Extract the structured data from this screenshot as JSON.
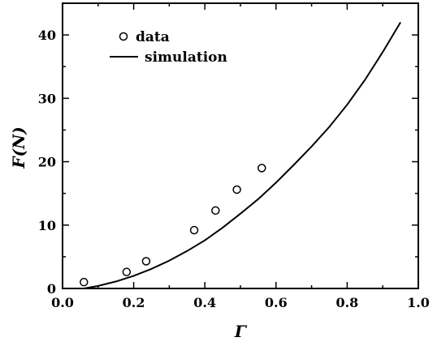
{
  "chart_data": {
    "type": "scatter",
    "xlabel": "Γ",
    "ylabel": "F(N)",
    "xlim": [
      0.0,
      1.0
    ],
    "ylim": [
      0,
      45
    ],
    "x_ticks": [
      "0.0",
      "0.2",
      "0.4",
      "0.6",
      "0.8",
      "1.0"
    ],
    "y_ticks": [
      "0",
      "10",
      "20",
      "30",
      "40"
    ],
    "grid": false,
    "legend_position": "top-left",
    "series": [
      {
        "name": "data",
        "kind": "scatter",
        "marker": "open-circle",
        "x": [
          0.06,
          0.18,
          0.235,
          0.37,
          0.43,
          0.49,
          0.56
        ],
        "y": [
          1.0,
          2.6,
          4.3,
          9.2,
          12.3,
          15.6,
          19.0
        ]
      },
      {
        "name": "simulation",
        "kind": "line",
        "x": [
          0.06,
          0.1,
          0.15,
          0.2,
          0.25,
          0.3,
          0.35,
          0.4,
          0.45,
          0.5,
          0.55,
          0.6,
          0.65,
          0.7,
          0.75,
          0.8,
          0.85,
          0.9,
          0.95
        ],
        "y": [
          0.0,
          0.4,
          1.1,
          2.0,
          3.1,
          4.4,
          5.9,
          7.6,
          9.6,
          11.8,
          14.1,
          16.7,
          19.5,
          22.4,
          25.5,
          29.0,
          32.9,
          37.3,
          42.0
        ]
      }
    ]
  }
}
